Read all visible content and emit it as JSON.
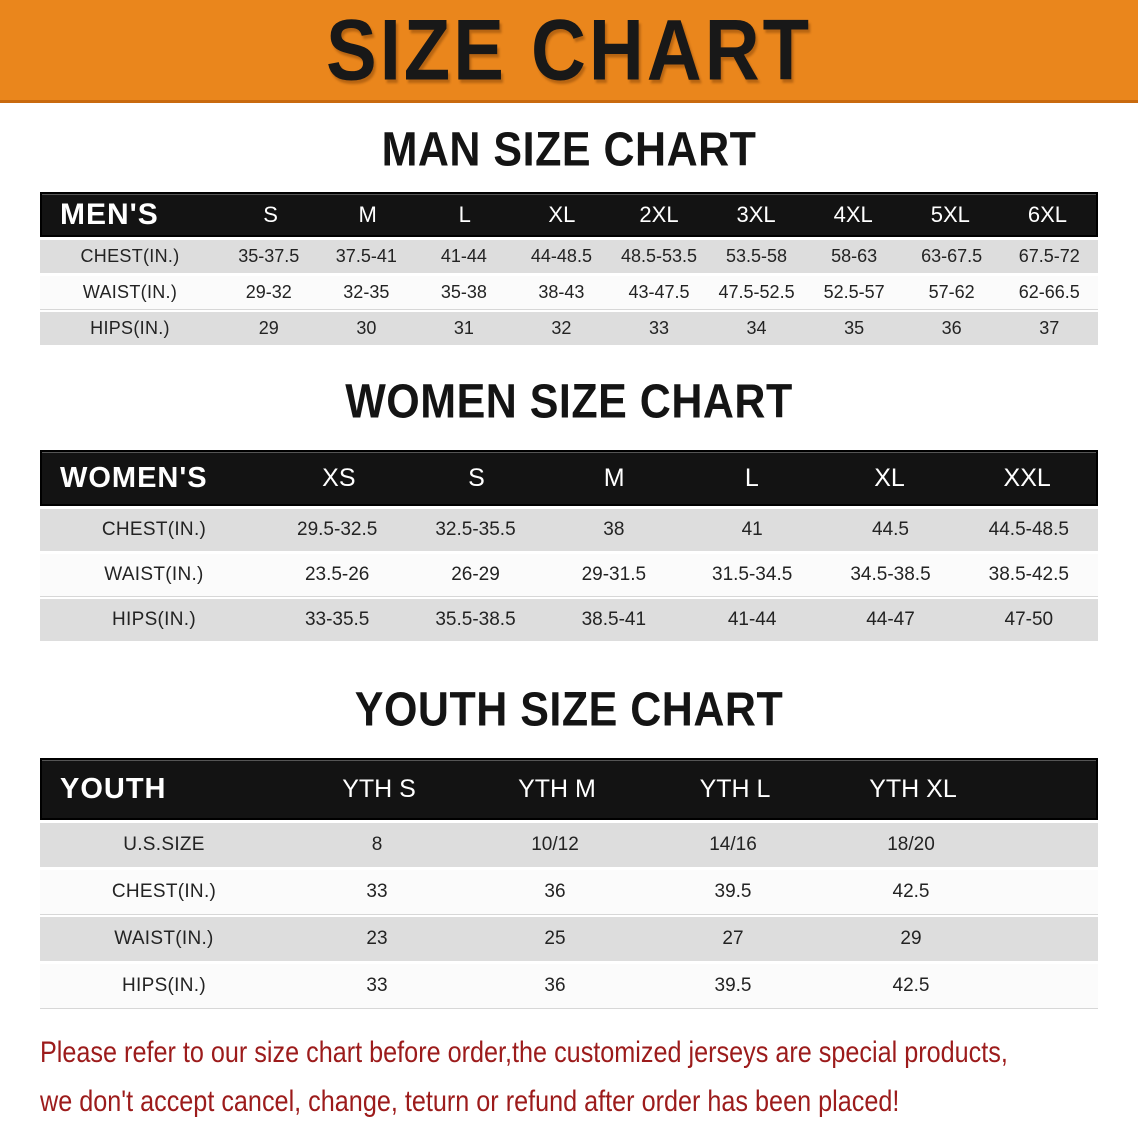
{
  "banner": {
    "title": "SIZE CHART",
    "bg_color": "#EA861C",
    "text_color": "#181818"
  },
  "men": {
    "title": "MAN SIZE CHART",
    "header": [
      "MEN'S",
      "S",
      "M",
      "L",
      "XL",
      "2XL",
      "3XL",
      "4XL",
      "5XL",
      "6XL"
    ],
    "rows": [
      {
        "label": "CHEST(IN.)",
        "values": [
          "35-37.5",
          "37.5-41",
          "41-44",
          "44-48.5",
          "48.5-53.5",
          "53.5-58",
          "58-63",
          "63-67.5",
          "67.5-72"
        ]
      },
      {
        "label": "WAIST(IN.)",
        "values": [
          "29-32",
          "32-35",
          "35-38",
          "38-43",
          "43-47.5",
          "47.5-52.5",
          "52.5-57",
          "57-62",
          "62-66.5"
        ]
      },
      {
        "label": "HIPS(IN.)",
        "values": [
          "29",
          "30",
          "31",
          "32",
          "33",
          "34",
          "35",
          "36",
          "37"
        ]
      }
    ]
  },
  "women": {
    "title": "WOMEN SIZE CHART",
    "header": [
      "WOMEN'S",
      "XS",
      "S",
      "M",
      "L",
      "XL",
      "XXL"
    ],
    "rows": [
      {
        "label": "CHEST(IN.)",
        "values": [
          "29.5-32.5",
          "32.5-35.5",
          "38",
          "41",
          "44.5",
          "44.5-48.5"
        ]
      },
      {
        "label": "WAIST(IN.)",
        "values": [
          "23.5-26",
          "26-29",
          "29-31.5",
          "31.5-34.5",
          "34.5-38.5",
          "38.5-42.5"
        ]
      },
      {
        "label": "HIPS(IN.)",
        "values": [
          "33-35.5",
          "35.5-38.5",
          "38.5-41",
          "41-44",
          "44-47",
          "47-50"
        ]
      }
    ]
  },
  "youth": {
    "title": "YOUTH SIZE CHART",
    "header": [
      "YOUTH",
      "YTH S",
      "YTH M",
      "YTH L",
      "YTH XL"
    ],
    "rows": [
      {
        "label": "U.S.SIZE",
        "values": [
          "8",
          "10/12",
          "14/16",
          "18/20"
        ]
      },
      {
        "label": "CHEST(IN.)",
        "values": [
          "33",
          "36",
          "39.5",
          "42.5"
        ]
      },
      {
        "label": "WAIST(IN.)",
        "values": [
          "23",
          "25",
          "27",
          "29"
        ]
      },
      {
        "label": "HIPS(IN.)",
        "values": [
          "33",
          "36",
          "39.5",
          "42.5"
        ]
      }
    ]
  },
  "disclaimer": {
    "line1": "Please refer to our size chart before order,the customized jerseys are special products,",
    "line2": "we don't accept cancel, change, teturn or refund after order has been placed!",
    "color": "#9C1B1B"
  }
}
